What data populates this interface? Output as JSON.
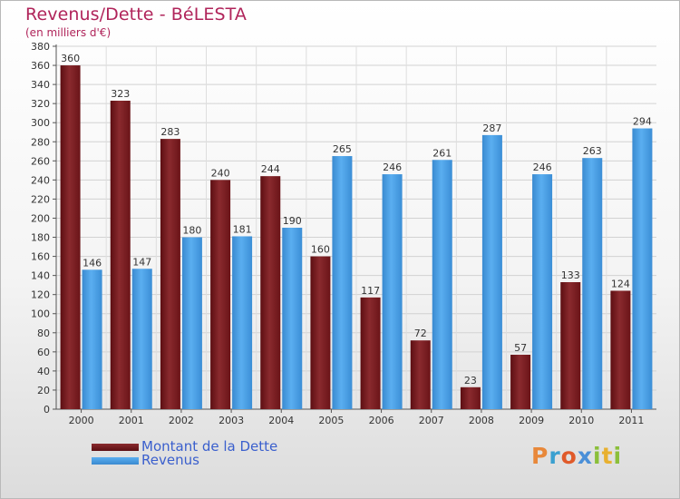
{
  "title": "Revenus/Dette - BéLESTA",
  "subtitle": "(en milliers d'€)",
  "legend": {
    "debt_label": "Montant de la Dette",
    "revenue_label": "Revenus"
  },
  "logo": {
    "text": "Proxiti",
    "letters": [
      "P",
      "r",
      "o",
      "x",
      "i",
      "t",
      "i"
    ]
  },
  "colors": {
    "debt": "#7a1a1e",
    "revenue": "#4a9de0",
    "title": "#b0245a",
    "legend_text": "#3a5fcd"
  },
  "chart_data": {
    "type": "bar",
    "categories": [
      "2000",
      "2001",
      "2002",
      "2003",
      "2004",
      "2005",
      "2006",
      "2007",
      "2008",
      "2009",
      "2010",
      "2011"
    ],
    "series": [
      {
        "name": "Montant de la Dette",
        "values": [
          360,
          323,
          283,
          240,
          244,
          160,
          117,
          72,
          23,
          57,
          133,
          124
        ]
      },
      {
        "name": "Revenus",
        "values": [
          146,
          147,
          180,
          181,
          190,
          265,
          246,
          261,
          287,
          246,
          263,
          294
        ]
      }
    ],
    "ylim": [
      0,
      380
    ],
    "ytick_step": 20,
    "yticks": [
      "0",
      "20",
      "40",
      "60",
      "80",
      "100",
      "120",
      "140",
      "160",
      "180",
      "200",
      "220",
      "240",
      "260",
      "280",
      "300",
      "320",
      "340",
      "360",
      "380"
    ],
    "grid": true,
    "legend_position": "bottom-left"
  }
}
